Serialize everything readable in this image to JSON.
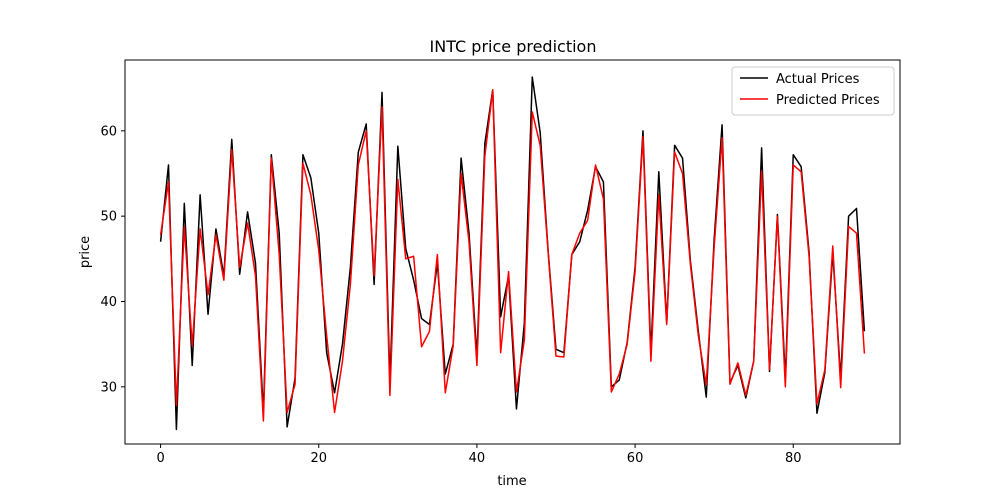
{
  "chart_data": {
    "type": "line",
    "title": "INTC price prediction",
    "xlabel": "time",
    "ylabel": "price",
    "xlim": [
      -4.5,
      93.5
    ],
    "ylim": [
      23.3,
      68.3
    ],
    "xticks": [
      0,
      20,
      40,
      60,
      80
    ],
    "yticks": [
      30,
      40,
      50,
      60
    ],
    "grid": false,
    "legend_position": "top-right",
    "series": [
      {
        "name": "Actual Prices",
        "color": "#000000",
        "values": [
          47.0,
          56.0,
          25.0,
          51.5,
          32.5,
          52.5,
          38.5,
          48.5,
          43.0,
          59.0,
          43.2,
          50.5,
          44.5,
          27.0,
          57.2,
          48.0,
          25.3,
          31.0,
          57.2,
          54.5,
          48.0,
          34.0,
          29.3,
          35.0,
          44.0,
          57.5,
          60.8,
          42.0,
          64.5,
          30.5,
          58.2,
          46.2,
          42.5,
          38.0,
          37.3,
          44.5,
          31.5,
          35.0,
          56.8,
          48.0,
          33.5,
          58.5,
          64.8,
          38.2,
          43.0,
          27.4,
          37.5,
          66.3,
          59.8,
          46.0,
          34.4,
          34.0,
          45.5,
          47.0,
          50.7,
          55.8,
          54.0,
          30.0,
          30.8,
          35.2,
          44.0,
          60.0,
          34.0,
          55.2,
          37.5,
          58.3,
          56.8,
          44.7,
          36.5,
          28.8,
          47.3,
          60.7,
          30.5,
          32.5,
          28.7,
          33.0,
          58.0,
          31.8,
          50.2,
          31.0,
          57.2,
          55.8,
          45.8,
          26.9,
          31.7,
          45.7,
          31.0,
          50.0,
          50.9,
          36.5
        ]
      },
      {
        "name": "Predicted Prices",
        "color": "#ff0000",
        "values": [
          47.8,
          54.0,
          27.8,
          48.8,
          34.8,
          48.5,
          40.8,
          47.8,
          42.5,
          57.8,
          44.0,
          49.2,
          43.0,
          26.0,
          56.8,
          45.5,
          27.0,
          30.3,
          56.2,
          52.5,
          46.0,
          36.0,
          27.0,
          33.0,
          42.0,
          56.0,
          60.0,
          43.0,
          62.8,
          29.0,
          54.3,
          45.0,
          45.3,
          34.7,
          36.5,
          45.5,
          29.3,
          34.8,
          55.0,
          47.0,
          32.5,
          57.0,
          64.8,
          34.0,
          43.5,
          29.4,
          35.5,
          62.2,
          58.3,
          45.8,
          33.6,
          33.5,
          45.5,
          48.0,
          49.5,
          56.0,
          52.0,
          29.4,
          31.5,
          35.0,
          43.5,
          59.3,
          33.0,
          52.5,
          37.3,
          57.5,
          55.0,
          44.3,
          36.0,
          30.2,
          46.4,
          59.2,
          30.3,
          32.8,
          29.0,
          33.0,
          55.3,
          32.0,
          50.0,
          30.0,
          56.0,
          55.2,
          45.3,
          28.0,
          32.0,
          46.5,
          29.9,
          48.8,
          48.0,
          33.9
        ]
      }
    ]
  }
}
